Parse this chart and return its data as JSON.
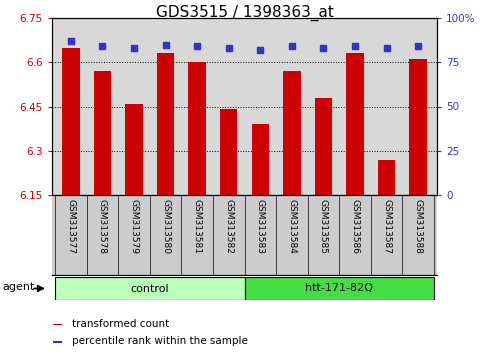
{
  "title": "GDS3515 / 1398363_at",
  "samples": [
    "GSM313577",
    "GSM313578",
    "GSM313579",
    "GSM313580",
    "GSM313581",
    "GSM313582",
    "GSM313583",
    "GSM313584",
    "GSM313585",
    "GSM313586",
    "GSM313587",
    "GSM313588"
  ],
  "bar_values": [
    6.65,
    6.57,
    6.46,
    6.63,
    6.6,
    6.44,
    6.39,
    6.57,
    6.48,
    6.63,
    6.27,
    6.61
  ],
  "percentile_values": [
    87,
    84,
    83,
    85,
    84,
    83,
    82,
    84,
    83,
    84,
    83,
    84
  ],
  "bar_color": "#cc0000",
  "percentile_color": "#3333cc",
  "y_min": 6.15,
  "y_max": 6.75,
  "y_ticks": [
    6.15,
    6.3,
    6.45,
    6.6,
    6.75
  ],
  "y_tick_labels": [
    "6.15",
    "6.3",
    "6.45",
    "6.6",
    "6.75"
  ],
  "right_y_ticks": [
    0,
    25,
    50,
    75,
    100
  ],
  "right_y_tick_labels": [
    "0",
    "25",
    "50",
    "75",
    "100%"
  ],
  "grid_lines": [
    6.3,
    6.45,
    6.6
  ],
  "groups": [
    {
      "label": "control",
      "start": 0,
      "end": 6,
      "color": "#bbffbb"
    },
    {
      "label": "htt-171-82Q",
      "start": 6,
      "end": 12,
      "color": "#44dd44"
    }
  ],
  "agent_label": "agent",
  "legend": [
    {
      "label": "transformed count",
      "color": "#cc0000"
    },
    {
      "label": "percentile rank within the sample",
      "color": "#3333cc"
    }
  ],
  "title_fontsize": 11,
  "tick_fontsize": 7.5,
  "label_fontsize": 6.5,
  "bar_width": 0.55,
  "background_color": "#ffffff",
  "plot_bg_color": "#d8d8d8",
  "sample_bg_color": "#cccccc"
}
